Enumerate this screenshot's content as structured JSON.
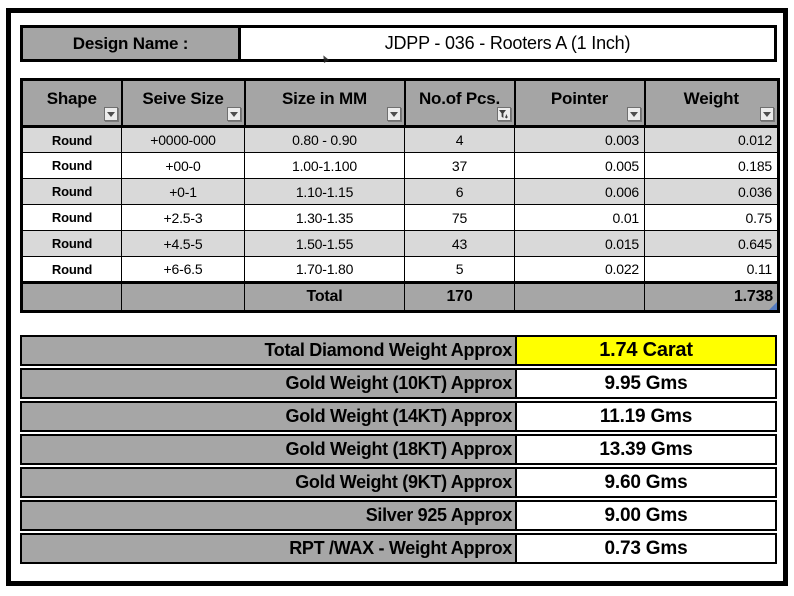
{
  "design": {
    "label": "Design Name :",
    "value": "JDPP - 036 - Rooters A (1 Inch)"
  },
  "main_table": {
    "columns": [
      {
        "label": "Shape",
        "filter": "arrow"
      },
      {
        "label": "Seive Size",
        "filter": "arrow"
      },
      {
        "label": "Size in MM",
        "filter": "arrow"
      },
      {
        "label": "No.of Pcs.",
        "filter": "funnel"
      },
      {
        "label": "Pointer",
        "filter": "arrow"
      },
      {
        "label": "Weight",
        "filter": "arrow"
      }
    ],
    "rows": [
      [
        "Round",
        "+0000-000",
        "0.80 - 0.90",
        "4",
        "0.003",
        "0.012"
      ],
      [
        "Round",
        "+00-0",
        "1.00-1.100",
        "37",
        "0.005",
        "0.185"
      ],
      [
        "Round",
        "+0-1",
        "1.10-1.15",
        "6",
        "0.006",
        "0.036"
      ],
      [
        "Round",
        "+2.5-3",
        "1.30-1.35",
        "75",
        "0.01",
        "0.75"
      ],
      [
        "Round",
        "+4.5-5",
        "1.50-1.55",
        "43",
        "0.015",
        "0.645"
      ],
      [
        "Round",
        "+6-6.5",
        "1.70-1.80",
        "5",
        "0.022",
        "0.11"
      ]
    ],
    "total_row": {
      "shape": "",
      "seive": "",
      "label": "Total",
      "pcs": "170",
      "pointer": "",
      "weight": "1.738"
    }
  },
  "summary": {
    "rows": [
      {
        "label": "Total Diamond Weight Approx",
        "value": "1.74 Carat",
        "highlight": true
      },
      {
        "label": "Gold Weight (10KT) Approx",
        "value": "9.95 Gms",
        "highlight": false
      },
      {
        "label": "Gold Weight (14KT) Approx",
        "value": "11.19 Gms",
        "highlight": false
      },
      {
        "label": "Gold Weight (18KT) Approx",
        "value": "13.39 Gms",
        "highlight": false
      },
      {
        "label": "Gold Weight (9KT) Approx",
        "value": "9.60 Gms",
        "highlight": false
      },
      {
        "label": "Silver 925 Approx",
        "value": "9.00 Gms",
        "highlight": false
      },
      {
        "label": "RPT /WAX - Weight Approx",
        "value": "0.73 Gms",
        "highlight": false
      }
    ]
  },
  "colors": {
    "header_gray": "#a5a5a5",
    "total_gray": "#a6a6a6",
    "summary_gray": "#a6a6a6",
    "row_light": "#d9d9d9",
    "row_white": "#ffffff",
    "highlight_yellow": "#ffff00",
    "border_black": "#000000",
    "handle_blue": "#4472c4"
  }
}
